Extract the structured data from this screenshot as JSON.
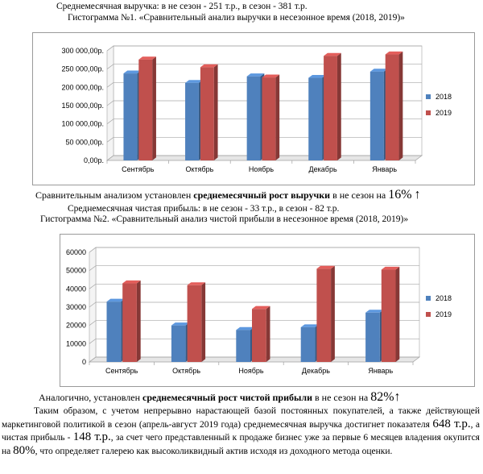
{
  "header1": {
    "text": "Среднемесячная выручка: в не сезон - 251 т.р., в сезон - 381 т.р."
  },
  "chart1_title": {
    "text": "Гистограмма №1. «Сравнительный анализ выручки в несезонное время (2018, 2019)»"
  },
  "summary1": {
    "prefix": "Сравнительным анализом установлен ",
    "bold": "среднемесячный рост выручки",
    "suffix": " в не сезон на ",
    "value": "16%",
    "arrow": "↑"
  },
  "header2": {
    "text": "Среднемесячная чистая прибыль: в не сезон - 33 т.р., в сезон - 82 т.р."
  },
  "chart2_title": {
    "text": "Гистограмма №2. «Сравнительный анализ чистой прибыли в несезонное время (2018, 2019)»"
  },
  "summary2": {
    "prefix": "Аналогично, установлен ",
    "bold": "среднемесячный рост чистой прибыли",
    "suffix": " в не сезон на ",
    "value": "82%",
    "arrow": "↑"
  },
  "conclusion": {
    "p1": "Таким образом, с учетом непрерывно нарастающей базой постоянных покупателей, а также действующей маркетинговой политикой в сезон (апрель-август 2019 года) среднемесячная выручка достигнет показателя ",
    "v1": "648 т.р.",
    "p2": ", а чистая прибыль - ",
    "v2": "148 т.р.",
    "p3": ", за счет чего представленный к продаже бизнес уже за первые 6 месяцев владения окупится на ",
    "v3": "80%",
    "p4": ", что определяет галерею как высоколиквидный актив исходя из доходного метода оценки."
  },
  "colors": {
    "series2018": "#4f81bd",
    "series2019": "#c0504d"
  },
  "chart_data": [
    {
      "type": "bar",
      "categories": [
        "Сентябрь",
        "Октябрь",
        "Ноябрь",
        "Декабрь",
        "Январь"
      ],
      "series": [
        {
          "name": "2018",
          "values": [
            238000,
            212000,
            230000,
            226000,
            243000
          ]
        },
        {
          "name": "2019",
          "values": [
            276000,
            255000,
            227000,
            286000,
            290000
          ]
        }
      ],
      "ylim": [
        0,
        300000
      ],
      "yticks": [
        "0,00р.",
        "50 000,00р.",
        "100 000,00р.",
        "150 000,00р.",
        "200 000,00р.",
        "250 000,00р.",
        "300 000,00р."
      ],
      "legend": "right"
    },
    {
      "type": "bar",
      "categories": [
        "Сентябрь",
        "Октябрь",
        "Ноябрь",
        "Декабрь",
        "Январь"
      ],
      "series": [
        {
          "name": "2018",
          "values": [
            33000,
            20000,
            17500,
            19000,
            27000
          ]
        },
        {
          "name": "2019",
          "values": [
            43000,
            42000,
            29000,
            51000,
            50500
          ]
        }
      ],
      "ylim": [
        0,
        60000
      ],
      "yticks": [
        "0",
        "10000",
        "20000",
        "30000",
        "40000",
        "50000",
        "60000"
      ],
      "legend": "right"
    }
  ]
}
